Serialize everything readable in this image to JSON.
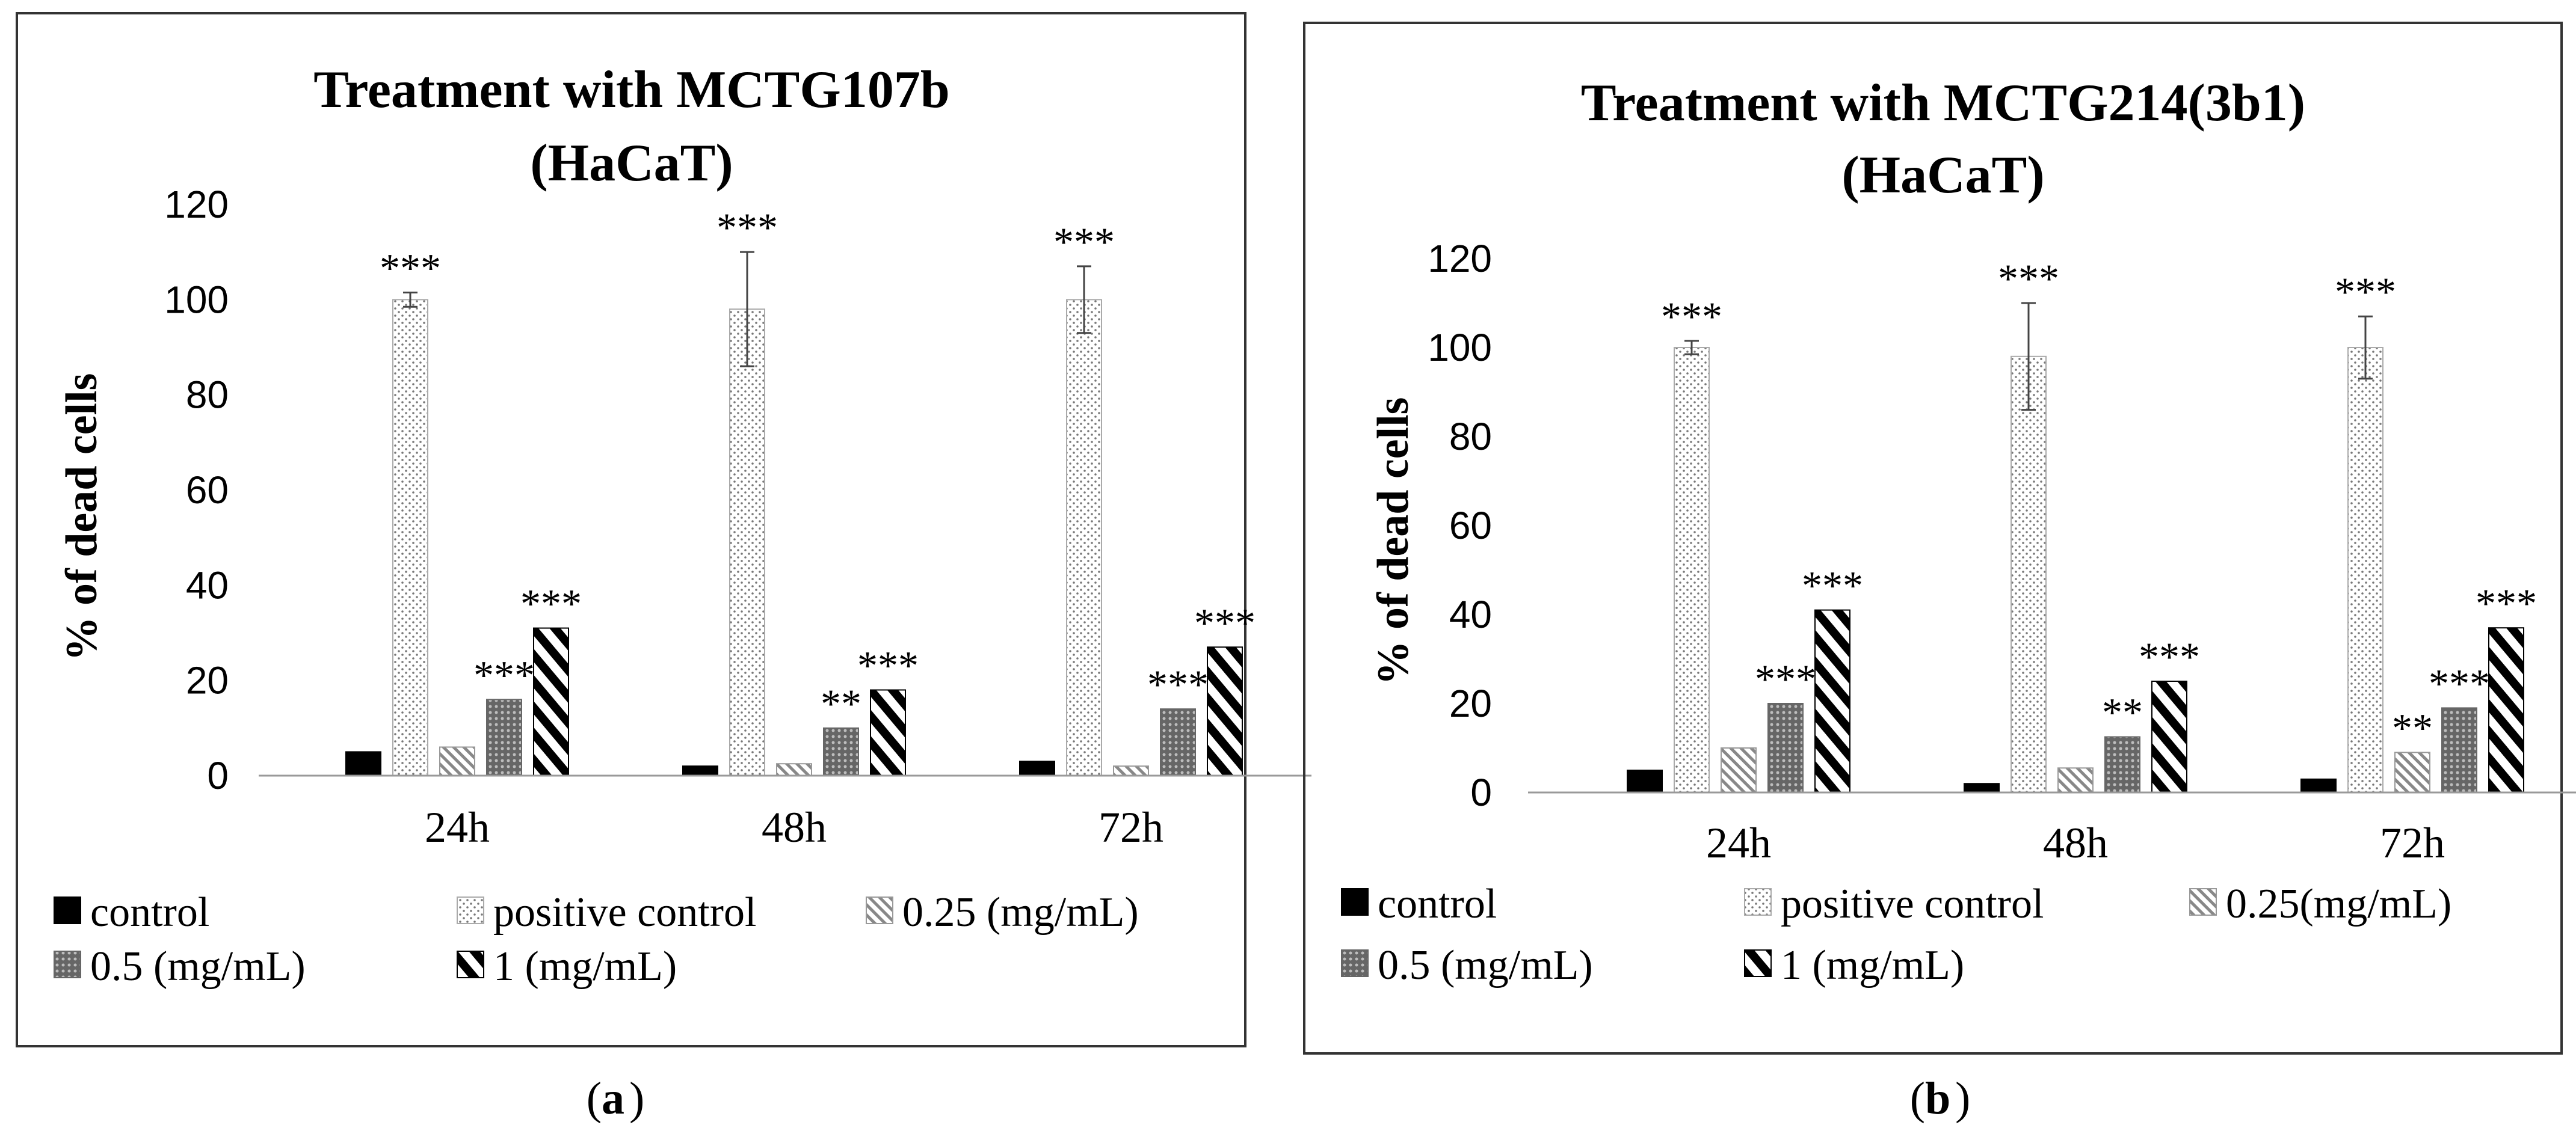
{
  "chart_data": [
    {
      "type": "bar",
      "panel_label": "a",
      "title_line1": "Treatment with MCTG107b",
      "title_line2": "(HaCaT)",
      "xlabel": "",
      "ylabel": "% of dead cells",
      "ylim": [
        0,
        120
      ],
      "yticks": [
        "0",
        "20",
        "40",
        "60",
        "80",
        "100",
        "120"
      ],
      "categories": [
        "24h",
        "48h",
        "72h"
      ],
      "grid": false,
      "legend_position": "bottom",
      "series": [
        {
          "name": "control",
          "values": [
            5,
            2,
            3
          ],
          "errors": [
            0.6,
            0.4,
            0.4
          ],
          "sig": [
            "",
            "",
            ""
          ]
        },
        {
          "name": "positive control",
          "values": [
            100,
            98,
            100
          ],
          "errors": [
            1.5,
            12,
            7
          ],
          "sig": [
            "***",
            "***",
            "***"
          ]
        },
        {
          "name": "0.25 (mg/mL)",
          "values": [
            6,
            2.5,
            2
          ],
          "errors": [
            0.4,
            0.3,
            0.3
          ],
          "sig": [
            "",
            "",
            ""
          ]
        },
        {
          "name": "0.5 (mg/mL)",
          "values": [
            16,
            10,
            14
          ],
          "errors": [
            0.8,
            0.6,
            0.6
          ],
          "sig": [
            "***",
            "**",
            "***"
          ]
        },
        {
          "name": "1 (mg/mL)",
          "values": [
            31,
            18,
            27
          ],
          "errors": [
            0.6,
            0.6,
            0.6
          ],
          "sig": [
            "***",
            "***",
            "***"
          ]
        }
      ]
    },
    {
      "type": "bar",
      "panel_label": "b",
      "title_line1": "Treatment with MCTG214(3b1)",
      "title_line2": "(HaCaT)",
      "xlabel": "",
      "ylabel": "% of dead cells",
      "ylim": [
        0,
        120
      ],
      "yticks": [
        "0",
        "20",
        "40",
        "60",
        "80",
        "100",
        "120"
      ],
      "categories": [
        "24h",
        "48h",
        "72h"
      ],
      "grid": false,
      "legend_position": "bottom",
      "series": [
        {
          "name": "control",
          "values": [
            5,
            2,
            3
          ],
          "errors": [
            0.6,
            0.4,
            0.4
          ],
          "sig": [
            "",
            "",
            ""
          ]
        },
        {
          "name": "positive control",
          "values": [
            100,
            98,
            100
          ],
          "errors": [
            1.5,
            12,
            7
          ],
          "sig": [
            "***",
            "***",
            "***"
          ]
        },
        {
          "name": "0.25(mg/mL)",
          "values": [
            10,
            5.5,
            9
          ],
          "errors": [
            0.4,
            0.4,
            0.4
          ],
          "sig": [
            "",
            "",
            "**"
          ]
        },
        {
          "name": "0.5 (mg/mL)",
          "values": [
            20,
            12.5,
            19
          ],
          "errors": [
            0.6,
            0.6,
            0.6
          ],
          "sig": [
            "***",
            "**",
            "***"
          ]
        },
        {
          "name": "1 (mg/mL)",
          "values": [
            41,
            25,
            37
          ],
          "errors": [
            0.8,
            0.8,
            0.8
          ],
          "sig": [
            "***",
            "***",
            "***"
          ]
        }
      ]
    }
  ]
}
